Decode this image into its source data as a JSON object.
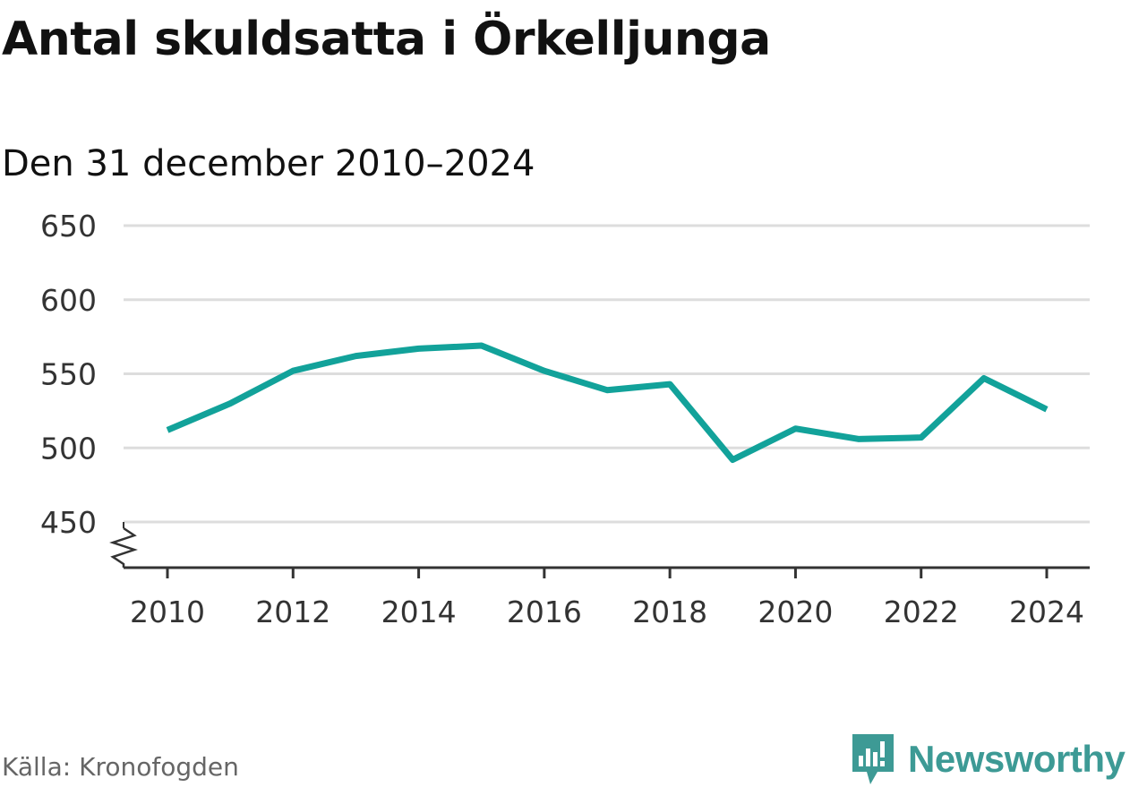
{
  "title": "Antal skuldsatta i Örkelljunga",
  "subtitle": "Den 31 december 2010–2024",
  "source": "Källa: Kronofogden",
  "brand": "Newsworthy",
  "colors": {
    "line": "#12a29a",
    "grid": "#dddddd",
    "axis": "#333333",
    "brand": "#3d9a95"
  },
  "chart_data": {
    "type": "line",
    "x": [
      2010,
      2011,
      2012,
      2013,
      2014,
      2015,
      2016,
      2017,
      2018,
      2019,
      2020,
      2021,
      2022,
      2023,
      2024
    ],
    "series": [
      {
        "values": [
          512,
          530,
          552,
          562,
          567,
          569,
          552,
          539,
          543,
          492,
          513,
          506,
          507,
          547,
          526
        ]
      }
    ],
    "y_ticks": [
      450,
      500,
      550,
      600,
      650
    ],
    "x_ticks": [
      2010,
      2012,
      2014,
      2016,
      2018,
      2020,
      2022,
      2024
    ],
    "ylim": [
      450,
      650
    ],
    "grid": true,
    "axis_break": true,
    "legend": false
  }
}
